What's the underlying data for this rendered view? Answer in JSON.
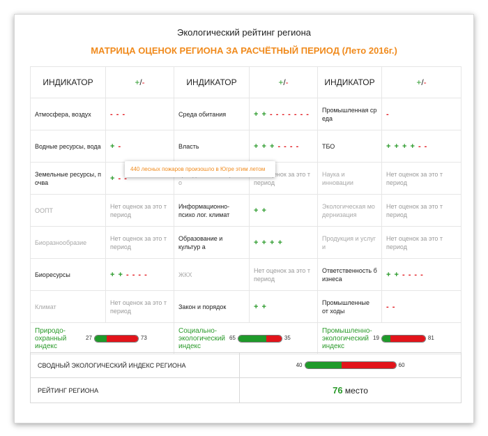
{
  "title": "Экологический рейтинг региона",
  "subtitle": "МАТРИЦА ОЦЕНОК РЕГИОНА ЗА РАСЧЁТНЫЙ ПЕРИОД (Лето 2016г.)",
  "header": {
    "indicator": "ИНДИКАТОР",
    "plus": "+",
    "slash": "/",
    "minus": "-"
  },
  "no_eval_label": "Нет оценок за это т период",
  "columns": [
    {
      "rows": [
        {
          "name": "Атмосфера, воздух",
          "plus": "",
          "minus": "- - -",
          "muted": false
        },
        {
          "name": "Водные ресурсы, вода",
          "plus": "+",
          "minus": "-",
          "muted": false
        },
        {
          "name": "Земельные ресурсы, п очва",
          "plus": "+",
          "minus": "- -",
          "muted": false
        },
        {
          "name": "ООПТ",
          "plus": null,
          "minus": null,
          "muted": true
        },
        {
          "name": "Биоразнообразие",
          "plus": null,
          "minus": null,
          "muted": true
        },
        {
          "name": "Биоресурсы",
          "plus": "+ +",
          "minus": "- - - -",
          "muted": false
        },
        {
          "name": "Климат",
          "plus": null,
          "minus": null,
          "muted": true
        }
      ],
      "index": {
        "label": "Природо-охранный индекс",
        "left": 27,
        "right": 73
      }
    },
    {
      "rows": [
        {
          "name": "Среда обитания",
          "plus": "+ +",
          "minus": "- - - - - - -",
          "muted": false
        },
        {
          "name": "Власть",
          "plus": "+ + +",
          "minus": "- - - -",
          "muted": false
        },
        {
          "name": "Гражданское обществ о",
          "plus": null,
          "minus": null,
          "muted": true
        },
        {
          "name": "Информационно-психо лог. климат",
          "plus": "+ +",
          "minus": "",
          "muted": false
        },
        {
          "name": "Образование и культур а",
          "plus": "+ + + +",
          "minus": "",
          "muted": false
        },
        {
          "name": "ЖКХ",
          "plus": null,
          "minus": null,
          "muted": true
        },
        {
          "name": "Закон и порядок",
          "plus": "+ +",
          "minus": "",
          "muted": false
        }
      ],
      "index": {
        "label": "Социально-экологический индекс",
        "left": 65,
        "right": 35
      }
    },
    {
      "rows": [
        {
          "name": "Промышленная ср еда",
          "plus": "",
          "minus": "-",
          "muted": false
        },
        {
          "name": "ТБО",
          "plus": "+ + + +",
          "minus": "- -",
          "muted": false
        },
        {
          "name": "Наука и инновации",
          "plus": null,
          "minus": null,
          "muted": true
        },
        {
          "name": "Экологическая мо дернизация",
          "plus": null,
          "minus": null,
          "muted": true
        },
        {
          "name": "Продукция и услуг и",
          "plus": null,
          "minus": null,
          "muted": true
        },
        {
          "name": "Ответственность б изнеса",
          "plus": "+ +",
          "minus": "- - - -",
          "muted": false
        },
        {
          "name": "Промышленные от ходы",
          "plus": "",
          "minus": "- -",
          "muted": false
        }
      ],
      "index": {
        "label": "Промышленно-экологический индекс",
        "left": 19,
        "right": 81
      }
    }
  ],
  "tooltip": "440 лесных пожаров произошло в Югре этим летом",
  "summary": {
    "label": "СВОДНЫЙ ЭКОЛОГИЧЕСКИЙ ИНДЕКС РЕГИОНА",
    "left": 40,
    "right": 60
  },
  "rating": {
    "label": "РЕЙТИНГ РЕГИОНА",
    "place": "76",
    "suffix": "место"
  },
  "colors": {
    "plus": "#2a9a2a",
    "minus": "#e2141b",
    "accent": "#f08a1c"
  }
}
